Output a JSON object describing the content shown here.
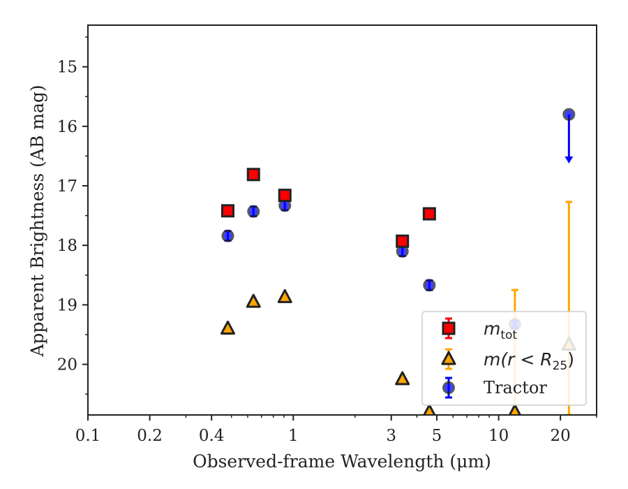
{
  "colors": {
    "mtot": "#ff0000",
    "mr25": "#ffa500",
    "tractor": "#0000ff",
    "edge": "#222222",
    "axis": "#222222",
    "background": "#ffffff"
  },
  "chart_data": {
    "type": "scatter",
    "xlabel": "Observed-frame Wavelength (μm)",
    "ylabel": "Apparent Brightness (AB mag)",
    "xscale": "log",
    "xlim": [
      0.1,
      30
    ],
    "ylim": [
      20.85,
      14.3
    ],
    "y_inverted": true,
    "grid": false,
    "legend_position": "lower-right",
    "x_ticks": [
      0.1,
      0.2,
      0.4,
      1,
      3,
      5,
      10,
      20
    ],
    "x_tick_labels": [
      "0.1",
      "0.2",
      "0.4",
      "1",
      "3",
      "5",
      "10",
      "20"
    ],
    "y_ticks": [
      15,
      16,
      17,
      18,
      19,
      20
    ],
    "y_tick_labels": [
      "15",
      "16",
      "17",
      "18",
      "19",
      "20"
    ],
    "series": [
      {
        "key": "mtot",
        "legend_label": "m_tot",
        "marker": "square",
        "points": [
          {
            "x": 0.48,
            "y": 17.42,
            "yerr": 0.06
          },
          {
            "x": 0.64,
            "y": 16.81,
            "yerr": 0.06
          },
          {
            "x": 0.91,
            "y": 17.16,
            "yerr": 0.06
          },
          {
            "x": 3.4,
            "y": 17.93,
            "yerr": 0.06
          },
          {
            "x": 4.6,
            "y": 17.47,
            "yerr": 0.06
          }
        ]
      },
      {
        "key": "mr25",
        "legend_label": "m(r < R_25)",
        "marker": "triangle",
        "points": [
          {
            "x": 0.48,
            "y": 19.4
          },
          {
            "x": 0.64,
            "y": 18.95
          },
          {
            "x": 0.91,
            "y": 18.87
          },
          {
            "x": 3.4,
            "y": 20.25
          },
          {
            "x": 4.6,
            "y": 20.8
          },
          {
            "x": 12.0,
            "y": 20.8
          },
          {
            "x": 22.0,
            "y": 19.67
          }
        ],
        "error_bars": [
          {
            "x": 12.0,
            "low": 18.75,
            "high": 20.85
          },
          {
            "x": 22.0,
            "low": 17.27,
            "high": 20.85
          }
        ]
      },
      {
        "key": "tractor",
        "legend_label": "Tractor",
        "marker": "circle",
        "points": [
          {
            "x": 0.48,
            "y": 17.84,
            "yerr": 0.08
          },
          {
            "x": 0.64,
            "y": 17.43,
            "yerr": 0.08
          },
          {
            "x": 0.91,
            "y": 17.33,
            "yerr": 0.08
          },
          {
            "x": 3.4,
            "y": 18.1,
            "yerr": 0.08
          },
          {
            "x": 4.6,
            "y": 18.67,
            "yerr": 0.08
          },
          {
            "x": 12.0,
            "y": 19.33,
            "yerr": 0.06
          },
          {
            "x": 22.0,
            "y": 15.8,
            "upper_limit_to": 16.6
          }
        ]
      }
    ],
    "legend": [
      {
        "key": "mtot",
        "main": "m",
        "sub": "tot"
      },
      {
        "key": "mr25",
        "main": "m(r < R",
        "sub": "25",
        "tail": ")"
      },
      {
        "key": "tractor",
        "text": "Tractor"
      }
    ]
  }
}
